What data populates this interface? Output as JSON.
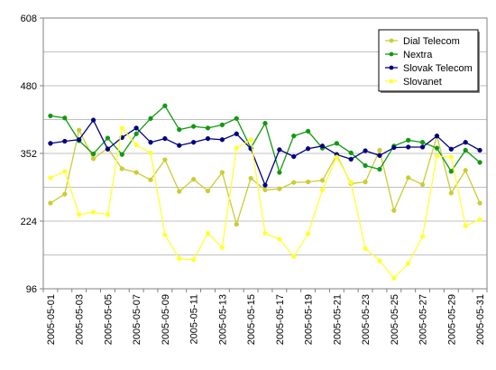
{
  "chart_data": {
    "type": "line",
    "title": "",
    "xlabel": "",
    "ylabel": "",
    "ylim": [
      96,
      608
    ],
    "yticks": [
      96,
      224,
      352,
      480,
      608
    ],
    "grid": true,
    "legend_position": "top-right",
    "x": [
      "2005-05-01",
      "2005-05-02",
      "2005-05-03",
      "2005-05-04",
      "2005-05-05",
      "2005-05-06",
      "2005-05-07",
      "2005-05-08",
      "2005-05-09",
      "2005-05-10",
      "2005-05-11",
      "2005-05-12",
      "2005-05-13",
      "2005-05-14",
      "2005-05-15",
      "2005-05-16",
      "2005-05-17",
      "2005-05-18",
      "2005-05-19",
      "2005-05-20",
      "2005-05-21",
      "2005-05-22",
      "2005-05-23",
      "2005-05-24",
      "2005-05-25",
      "2005-05-26",
      "2005-05-27",
      "2005-05-28",
      "2005-05-29",
      "2005-05-30",
      "2005-05-31"
    ],
    "xtick_labels": [
      "2005-05-01",
      "2005-05-03",
      "2005-05-05",
      "2005-05-07",
      "2005-05-09",
      "2005-05-11",
      "2005-05-13",
      "2005-05-15",
      "2005-05-17",
      "2005-05-19",
      "2005-05-21",
      "2005-05-23",
      "2005-05-25",
      "2005-05-27",
      "2005-05-29",
      "2005-05-31"
    ],
    "series": [
      {
        "name": "Dial Telecom",
        "color": "#cccc33",
        "values": [
          258,
          275,
          396,
          342,
          362,
          323,
          316,
          302,
          340,
          280,
          303,
          281,
          316,
          218,
          305,
          283,
          285,
          297,
          298,
          301,
          349,
          295,
          298,
          358,
          244,
          306,
          293,
          385,
          277,
          320,
          258
        ]
      },
      {
        "name": "Nextra",
        "color": "#119911",
        "values": [
          423,
          419,
          376,
          351,
          381,
          350,
          389,
          418,
          442,
          397,
          403,
          400,
          406,
          418,
          362,
          409,
          316,
          385,
          394,
          362,
          371,
          353,
          329,
          322,
          366,
          377,
          373,
          362,
          318,
          358,
          335
        ]
      },
      {
        "name": "Slovak Telecom",
        "color": "#000080",
        "values": [
          371,
          375,
          378,
          415,
          360,
          382,
          400,
          373,
          380,
          367,
          373,
          380,
          378,
          389,
          361,
          292,
          359,
          346,
          361,
          366,
          350,
          341,
          357,
          348,
          363,
          364,
          364,
          385,
          360,
          373,
          358
        ]
      },
      {
        "name": "Slovanet",
        "color": "#ffff33",
        "values": [
          306,
          318,
          236,
          241,
          236,
          400,
          368,
          353,
          198,
          153,
          151,
          201,
          174,
          362,
          378,
          201,
          190,
          157,
          200,
          283,
          345,
          297,
          172,
          149,
          116,
          144,
          195,
          347,
          345,
          215,
          227
        ]
      }
    ]
  }
}
